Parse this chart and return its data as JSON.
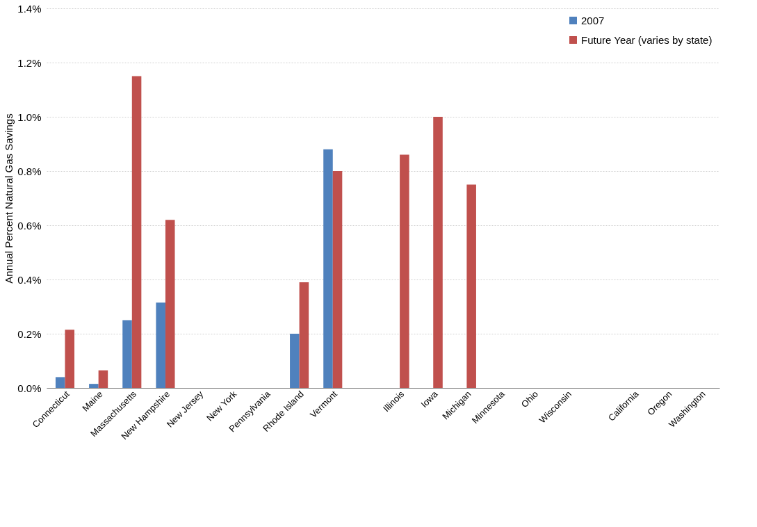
{
  "chart_data": {
    "type": "bar",
    "ylabel": "Annual Percent Natural Gas Savings",
    "categories": [
      "Connecticut",
      "Maine",
      "Massachusetts",
      "New Hampshire",
      "New Jersey",
      "New York",
      "Pennsylvania",
      "Rhode Island",
      "Vermont",
      null,
      "Illinois",
      "Iowa",
      "Michigan",
      "Minnesota",
      "Ohio",
      "Wisconsin",
      null,
      "California",
      "Oregon",
      "Washington"
    ],
    "series": [
      {
        "name": "2007",
        "color": "#4f81bd",
        "values": [
          0.04,
          0.015,
          0.25,
          0.315,
          null,
          null,
          null,
          0.2,
          0.88,
          null,
          null,
          null,
          null,
          null,
          null,
          null,
          null,
          null,
          null,
          null
        ]
      },
      {
        "name": "Future Year (varies by state)",
        "color": "#c0504d",
        "values": [
          0.215,
          0.065,
          1.15,
          0.62,
          null,
          null,
          null,
          0.39,
          0.8,
          null,
          0.86,
          1.0,
          0.75,
          null,
          null,
          null,
          null,
          null,
          null,
          null
        ]
      }
    ],
    "ylim": [
      0,
      1.4
    ],
    "yticks": [
      {
        "value": 0,
        "label": "0.0%"
      },
      {
        "value": 0.2,
        "label": "0.2%"
      },
      {
        "value": 0.4,
        "label": "0.4%"
      },
      {
        "value": 0.6,
        "label": "0.6%"
      },
      {
        "value": 0.8,
        "label": "0.8%"
      },
      {
        "value": 1.0,
        "label": "1.0%"
      },
      {
        "value": 1.2,
        "label": "1.2%"
      },
      {
        "value": 1.4,
        "label": "1.4%"
      }
    ],
    "grid": "y",
    "legend": "top right"
  }
}
